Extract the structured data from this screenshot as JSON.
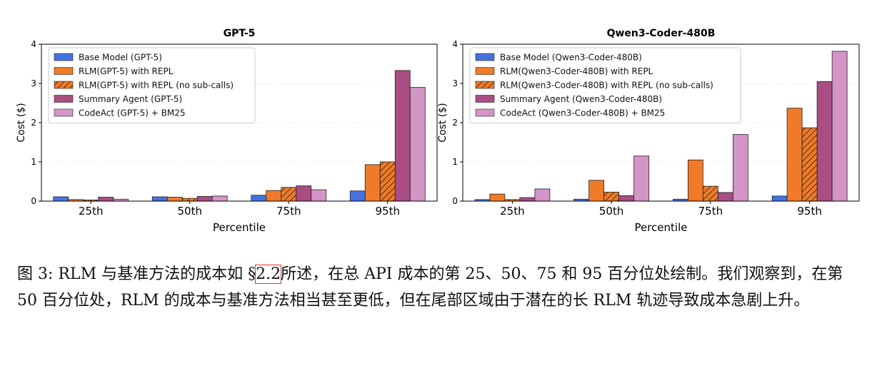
{
  "colors": {
    "base": "#4472e0",
    "repl": "#f07a28",
    "nosub": "#f07a28",
    "summary": "#a94d82",
    "codeact": "#d494c7",
    "edge": "#222222",
    "caption_ref_box": "#e0302b"
  },
  "chart_data": [
    {
      "type": "bar",
      "title": "GPT-5",
      "xlabel": "Percentile",
      "ylabel": "Cost ($)",
      "ylim": [
        0,
        4
      ],
      "yticks": [
        "0",
        "1",
        "2",
        "3",
        "4"
      ],
      "categories": [
        "25th",
        "50th",
        "75th",
        "95th"
      ],
      "legend_position": "top-left",
      "series": [
        {
          "name": "Base Model (GPT-5)",
          "key": "base",
          "values": [
            0.11,
            0.11,
            0.15,
            0.26
          ]
        },
        {
          "name": "RLM(GPT-5) with REPL",
          "key": "repl",
          "values": [
            0.04,
            0.1,
            0.27,
            0.93
          ]
        },
        {
          "name": "RLM(GPT-5) with REPL (no sub-calls)",
          "key": "nosub",
          "values": [
            0.03,
            0.07,
            0.35,
            1.0
          ]
        },
        {
          "name": "Summary Agent (GPT-5)",
          "key": "summary",
          "values": [
            0.1,
            0.12,
            0.39,
            3.33
          ]
        },
        {
          "name": "CodeAct (GPT-5) + BM25",
          "key": "codeact",
          "values": [
            0.05,
            0.13,
            0.29,
            2.9
          ]
        }
      ]
    },
    {
      "type": "bar",
      "title": "Qwen3-Coder-480B",
      "xlabel": "Percentile",
      "ylabel": "Cost ($)",
      "ylim": [
        0,
        4
      ],
      "yticks": [
        "0",
        "1",
        "2",
        "3",
        "4"
      ],
      "categories": [
        "25th",
        "50th",
        "75th",
        "95th"
      ],
      "legend_position": "top-left",
      "series": [
        {
          "name": "Base Model (Qwen3-Coder-480B)",
          "key": "base",
          "values": [
            0.04,
            0.05,
            0.05,
            0.13
          ]
        },
        {
          "name": "RLM(Qwen3-Coder-480B) with REPL",
          "key": "repl",
          "values": [
            0.18,
            0.53,
            1.05,
            2.37
          ]
        },
        {
          "name": "RLM(Qwen3-Coder-480B) with REPL (no sub-calls)",
          "key": "nosub",
          "values": [
            0.04,
            0.23,
            0.38,
            1.87
          ]
        },
        {
          "name": "Summary Agent (Qwen3-Coder-480B)",
          "key": "summary",
          "values": [
            0.09,
            0.14,
            0.22,
            3.05
          ]
        },
        {
          "name": "CodeAct (Qwen3-Coder-480B) + BM25",
          "key": "codeact",
          "values": [
            0.31,
            1.15,
            1.7,
            3.82
          ]
        }
      ]
    }
  ],
  "caption": {
    "before": "图 3: RLM 与基准方法的成本如 §",
    "ref": "2.2",
    "after": "所述，在总 API 成本的第 25、50、75 和 95 百分位处绘制。我们观察到，在第 50 百分位处，RLM 的成本与基准方法相当甚至更低，但在尾部区域由于潜在的长 RLM 轨迹导致成本急剧上升。"
  }
}
